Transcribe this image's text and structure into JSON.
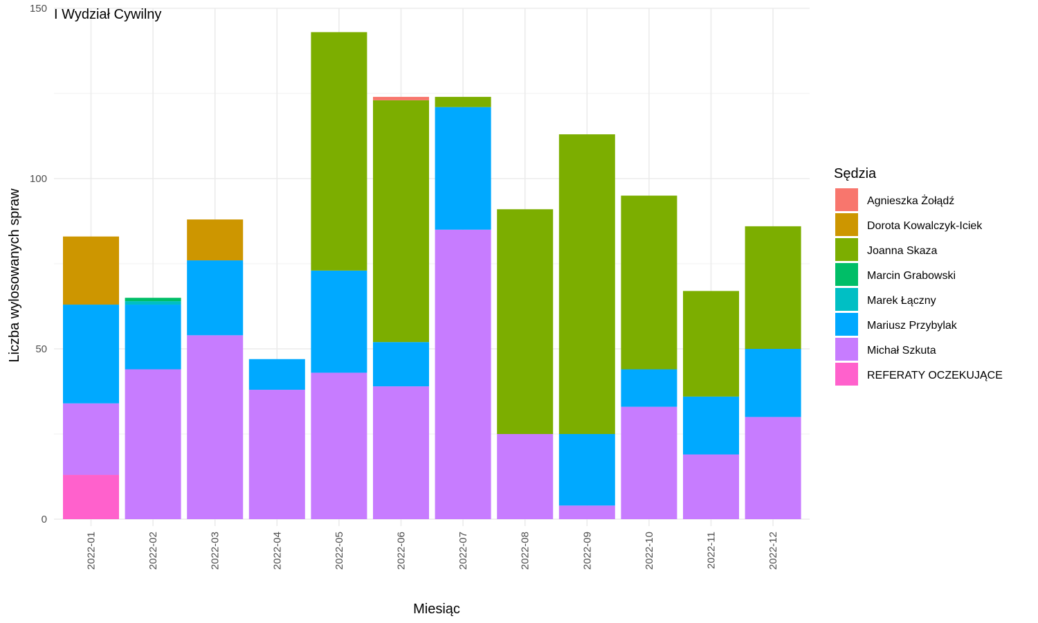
{
  "chart_data": {
    "type": "bar",
    "stacked": true,
    "title": "I Wydział Cywilny",
    "xlabel": "Miesiąc",
    "ylabel": "Liczba wylosowanych spraw",
    "ylim": [
      0,
      150
    ],
    "yticks": [
      0,
      50,
      100,
      150
    ],
    "grid": true,
    "legend_title": "Sędzia",
    "legend_position": "right",
    "categories": [
      "2022-01",
      "2022-02",
      "2022-03",
      "2022-04",
      "2022-05",
      "2022-06",
      "2022-07",
      "2022-08",
      "2022-09",
      "2022-10",
      "2022-11",
      "2022-12"
    ],
    "stack_order_bottom_to_top": [
      "REFERATY OCZEKUJĄCE",
      "Michał Szkuta",
      "Mariusz Przybylak",
      "Marek Łączny",
      "Marcin Grabowski",
      "Joanna Skaza",
      "Dorota Kowalczyk-Iciek",
      "Agnieszka Żołądź"
    ],
    "series": [
      {
        "name": "Agnieszka Żołądź",
        "color": "#F8766D",
        "values": [
          0,
          0,
          0,
          0,
          0,
          1,
          0,
          0,
          0,
          0,
          0,
          0
        ]
      },
      {
        "name": "Dorota Kowalczyk-Iciek",
        "color": "#CD9600",
        "values": [
          20,
          0,
          12,
          0,
          0,
          0,
          0,
          0,
          0,
          0,
          0,
          0
        ]
      },
      {
        "name": "Joanna Skaza",
        "color": "#7CAE00",
        "values": [
          0,
          0,
          0,
          0,
          70,
          71,
          3,
          66,
          88,
          51,
          31,
          36
        ]
      },
      {
        "name": "Marcin Grabowski",
        "color": "#00BE67",
        "values": [
          0,
          1,
          0,
          0,
          0,
          0,
          0,
          0,
          0,
          0,
          0,
          0
        ]
      },
      {
        "name": "Marek Łączny",
        "color": "#00BFC4",
        "values": [
          0,
          1,
          0,
          0,
          0,
          0,
          0,
          0,
          0,
          0,
          0,
          0
        ]
      },
      {
        "name": "Mariusz Przybylak",
        "color": "#00A9FF",
        "values": [
          29,
          19,
          22,
          9,
          30,
          13,
          36,
          0,
          21,
          11,
          17,
          20
        ]
      },
      {
        "name": "Michał Szkuta",
        "color": "#C77CFF",
        "values": [
          21,
          44,
          54,
          38,
          43,
          39,
          85,
          25,
          4,
          33,
          19,
          30
        ]
      },
      {
        "name": "REFERATY OCZEKUJĄCE",
        "color": "#FF61CC",
        "values": [
          13,
          0,
          0,
          0,
          0,
          0,
          0,
          0,
          0,
          0,
          0,
          0
        ]
      }
    ]
  }
}
